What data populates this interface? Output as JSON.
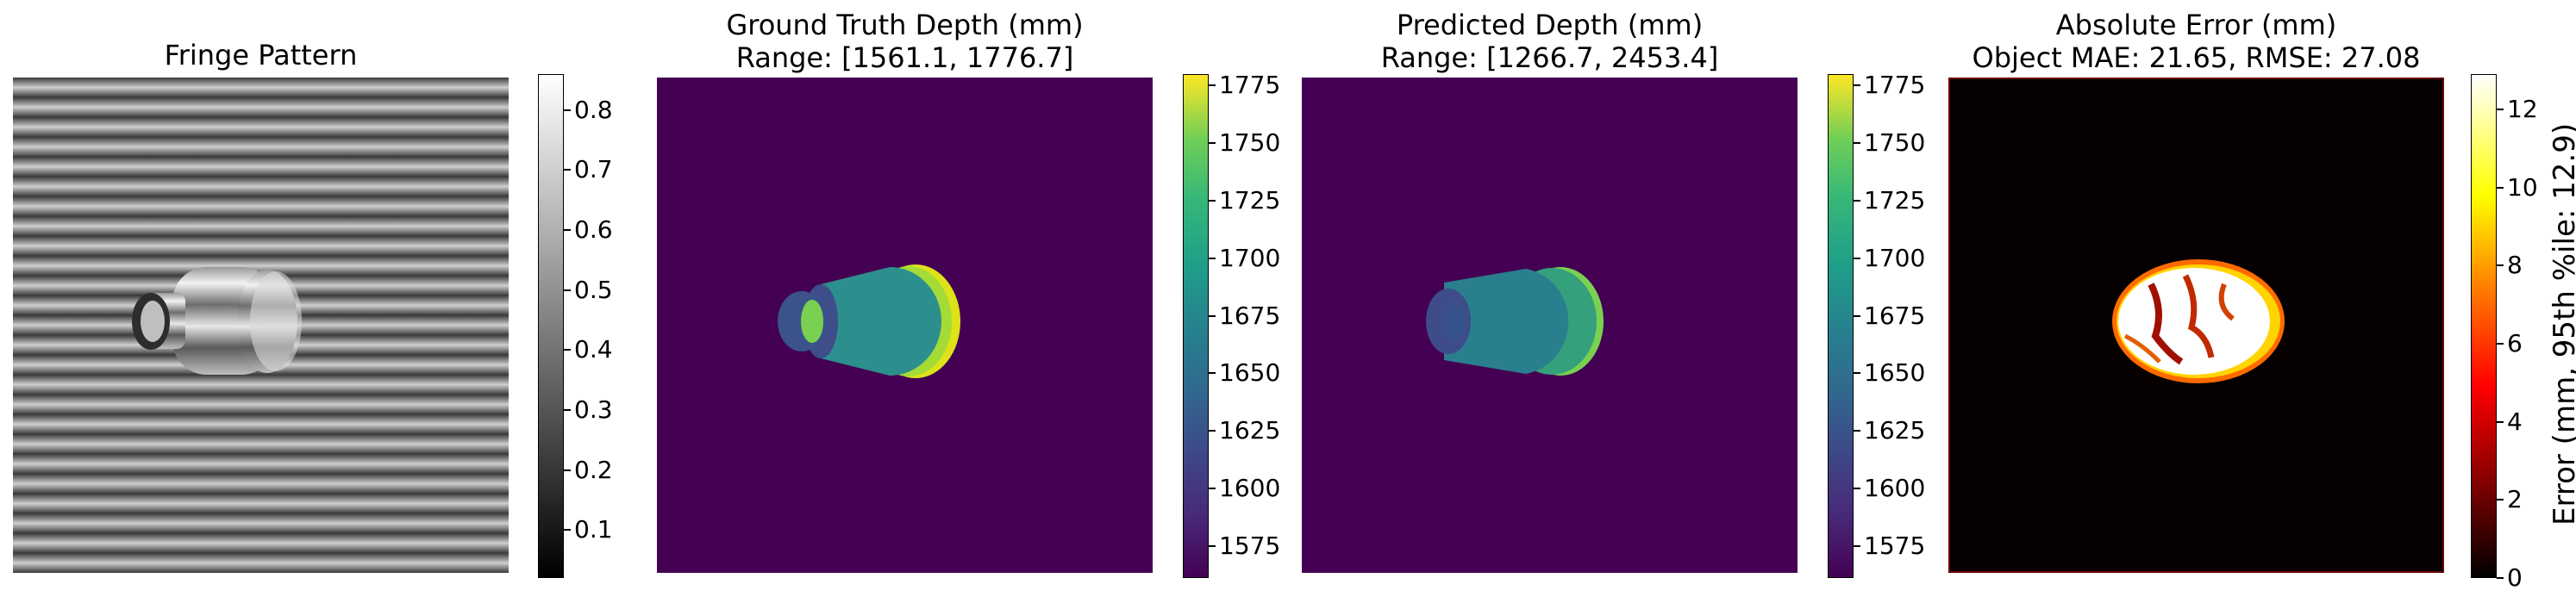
{
  "chart_data": [
    {
      "type": "heatmap",
      "title": "Fringe Pattern",
      "colormap": "gray",
      "colorbar": {
        "ticks": [
          0.1,
          0.2,
          0.3,
          0.4,
          0.5,
          0.6,
          0.7,
          0.8
        ],
        "range": [
          0.02,
          0.86
        ]
      }
    },
    {
      "type": "heatmap",
      "title": "Ground Truth Depth (mm)\nRange: [1561.1, 1776.7]",
      "colormap": "viridis",
      "colorbar": {
        "ticks": [
          1575,
          1600,
          1625,
          1650,
          1675,
          1700,
          1725,
          1750,
          1775
        ],
        "range": [
          1561.1,
          1780
        ]
      }
    },
    {
      "type": "heatmap",
      "title": "Predicted Depth (mm)\nRange: [1266.7, 2453.4]",
      "colormap": "viridis",
      "colorbar": {
        "ticks": [
          1575,
          1600,
          1625,
          1650,
          1675,
          1700,
          1725,
          1750,
          1775
        ],
        "range": [
          1561.1,
          1780
        ]
      }
    },
    {
      "type": "heatmap",
      "title": "Absolute Error (mm)\nObject MAE: 21.65, RMSE: 27.08",
      "colormap": "hot",
      "colorbar": {
        "ticks": [
          0,
          2,
          4,
          6,
          8,
          10,
          12
        ],
        "range": [
          0,
          12.9
        ],
        "label": "Error (mm, 95th %ile: 12.9)"
      }
    }
  ]
}
